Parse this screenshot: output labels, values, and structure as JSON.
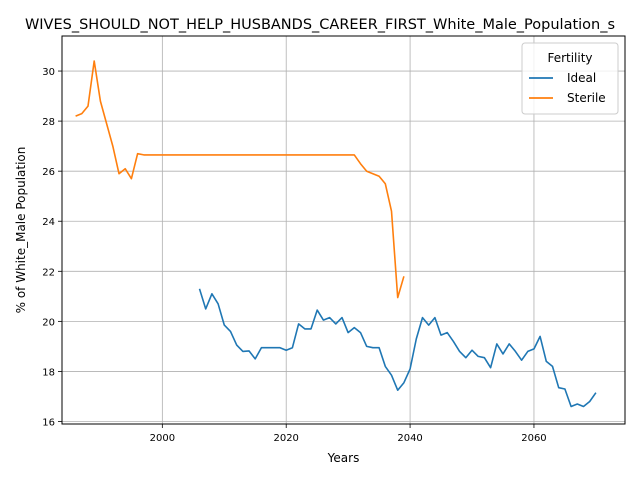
{
  "chart_data": {
    "type": "line",
    "title": "WIVES_SHOULD_NOT_HELP_HUSBANDS_CAREER_FIRST_White_Male_Population_s",
    "xlabel": "Years",
    "ylabel": "% of White_Male Population",
    "xlim": [
      1983.8,
      2074.7
    ],
    "ylim": [
      15.9,
      31.4
    ],
    "xticks": [
      2000,
      2020,
      2040,
      2060
    ],
    "yticks": [
      16,
      18,
      20,
      22,
      24,
      26,
      28,
      30
    ],
    "grid": true,
    "legend": {
      "title": "Fertility",
      "position": "top-right"
    },
    "series": [
      {
        "name": "Ideal",
        "color": "#1f77b4",
        "x": [
          2006,
          2007,
          2008,
          2009,
          2010,
          2011,
          2012,
          2013,
          2014,
          2015,
          2016,
          2017,
          2018,
          2019,
          2020,
          2021,
          2022,
          2023,
          2024,
          2025,
          2026,
          2027,
          2028,
          2029,
          2030,
          2031,
          2032,
          2033,
          2034,
          2035,
          2036,
          2037,
          2038,
          2039,
          2040,
          2041,
          2042,
          2043,
          2044,
          2045,
          2046,
          2047,
          2048,
          2049,
          2050,
          2051,
          2052,
          2053,
          2054,
          2055,
          2056,
          2057,
          2058,
          2059,
          2060,
          2061,
          2062,
          2063,
          2064,
          2065,
          2066,
          2067,
          2068,
          2069,
          2070
        ],
        "y": [
          21.3,
          20.5,
          21.1,
          20.7,
          19.85,
          19.6,
          19.05,
          18.8,
          18.82,
          18.5,
          18.95,
          18.95,
          18.95,
          18.95,
          18.85,
          18.95,
          19.9,
          19.7,
          19.7,
          20.45,
          20.05,
          20.15,
          19.9,
          20.15,
          19.55,
          19.75,
          19.55,
          19.0,
          18.95,
          18.95,
          18.2,
          17.85,
          17.25,
          17.55,
          18.1,
          19.3,
          20.15,
          19.85,
          20.15,
          19.45,
          19.55,
          19.2,
          18.8,
          18.55,
          18.85,
          18.6,
          18.55,
          18.15,
          19.1,
          18.7,
          19.1,
          18.8,
          18.45,
          18.8,
          18.9,
          19.4,
          18.4,
          18.2,
          17.35,
          17.3,
          16.6,
          16.7,
          16.6,
          16.8,
          17.15
        ]
      },
      {
        "name": "Sterile",
        "color": "#ff7f0e",
        "x": [
          1986,
          1987,
          1988,
          1989,
          1990,
          1991,
          1992,
          1993,
          1994,
          1995,
          1996,
          1997,
          1998,
          1999,
          2000,
          2001,
          2002,
          2003,
          2004,
          2005,
          2006,
          2007,
          2008,
          2009,
          2010,
          2011,
          2012,
          2013,
          2014,
          2015,
          2016,
          2017,
          2018,
          2019,
          2020,
          2021,
          2022,
          2023,
          2024,
          2025,
          2026,
          2027,
          2028,
          2029,
          2030,
          2031,
          2032,
          2033,
          2034,
          2035,
          2036,
          2037,
          2038,
          2039
        ],
        "y": [
          28.2,
          28.3,
          28.6,
          30.4,
          28.8,
          27.9,
          27.0,
          25.9,
          26.1,
          25.7,
          26.7,
          26.65,
          26.65,
          26.65,
          26.65,
          26.65,
          26.65,
          26.65,
          26.65,
          26.65,
          26.65,
          26.65,
          26.65,
          26.65,
          26.65,
          26.65,
          26.65,
          26.65,
          26.65,
          26.65,
          26.65,
          26.65,
          26.65,
          26.65,
          26.65,
          26.65,
          26.65,
          26.65,
          26.65,
          26.65,
          26.65,
          26.65,
          26.65,
          26.65,
          26.65,
          26.65,
          26.3,
          26.0,
          25.9,
          25.8,
          25.5,
          24.4,
          20.95,
          21.8
        ]
      }
    ]
  }
}
